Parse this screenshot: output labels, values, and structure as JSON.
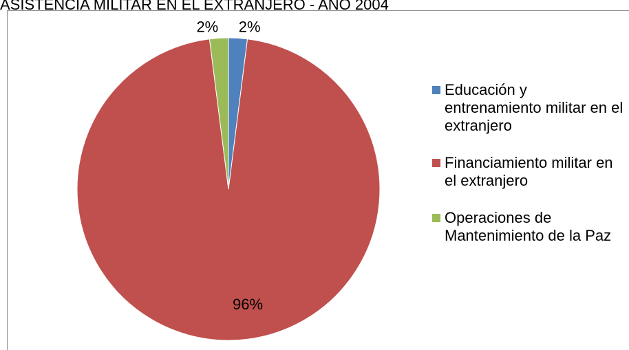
{
  "chart_data": {
    "type": "pie",
    "title": "ASISTENCIA MILITAR EN EL EXTRANJERO - AÑO 2004",
    "categories": [
      "Educación y entrenamiento militar en el extranjero",
      "Financiamiento militar en el extranjero",
      "Operaciones de Mantenimiento de la Paz"
    ],
    "values": [
      2,
      96,
      2
    ],
    "value_labels": [
      "2%",
      "96%",
      "2%"
    ],
    "colors": [
      "#4f81bd",
      "#c0504d",
      "#9bbb59"
    ],
    "legend": "right"
  }
}
